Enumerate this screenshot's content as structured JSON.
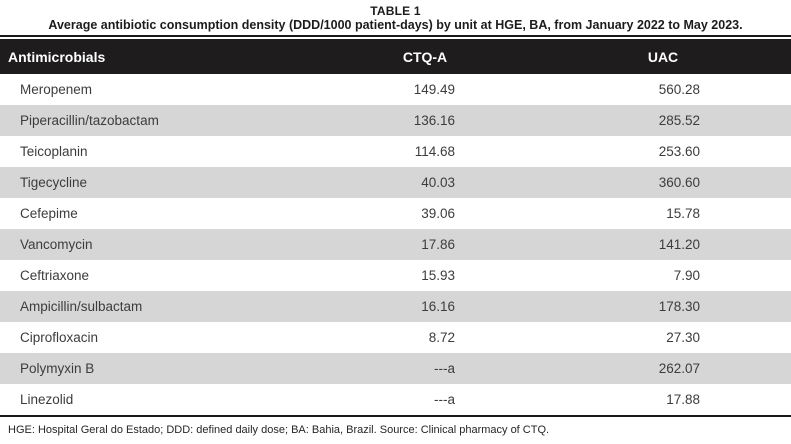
{
  "title": "TABLE 1",
  "caption": "Average antibiotic consumption density (DDD/1000 patient-days) by unit at HGE, BA, from January 2022 to May 2023.",
  "table": {
    "columns": [
      "Antimicrobials",
      "CTQ-A",
      "UAC"
    ],
    "rows": [
      {
        "antimicrobial": "Meropenem",
        "ctq_a": "149.49",
        "uac": "560.28"
      },
      {
        "antimicrobial": "Piperacillin/tazobactam",
        "ctq_a": "136.16",
        "uac": "285.52"
      },
      {
        "antimicrobial": "Teicoplanin",
        "ctq_a": "114.68",
        "uac": "253.60"
      },
      {
        "antimicrobial": "Tigecycline",
        "ctq_a": "40.03",
        "uac": "360.60"
      },
      {
        "antimicrobial": "Cefepime",
        "ctq_a": "39.06",
        "uac": "15.78"
      },
      {
        "antimicrobial": "Vancomycin",
        "ctq_a": "17.86",
        "uac": "141.20"
      },
      {
        "antimicrobial": "Ceftriaxone",
        "ctq_a": "15.93",
        "uac": "7.90"
      },
      {
        "antimicrobial": "Ampicillin/sulbactam",
        "ctq_a": "16.16",
        "uac": "178.30"
      },
      {
        "antimicrobial": "Ciprofloxacin",
        "ctq_a": "8.72",
        "uac": "27.30"
      },
      {
        "antimicrobial": "Polymyxin B",
        "ctq_a": "---a",
        "uac": "262.07"
      },
      {
        "antimicrobial": "Linezolid",
        "ctq_a": "---a",
        "uac": "17.88"
      }
    ]
  },
  "footnote": "HGE: Hospital Geral do Estado; DDD: defined daily dose; BA: Bahia, Brazil. Source: Clinical pharmacy of CTQ.",
  "colors": {
    "header_bg": "#1e1c1c",
    "row_stripe_bg": "#d6d6d6",
    "rule": "#1b1919",
    "body_text": "#3c3c3c"
  }
}
